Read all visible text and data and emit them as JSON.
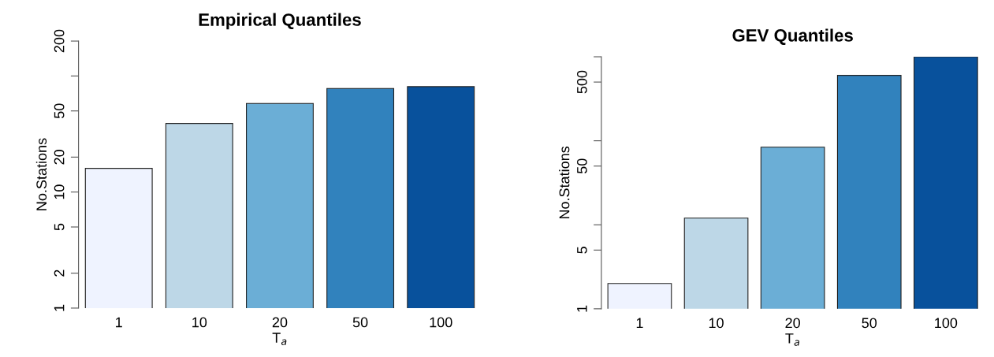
{
  "chart_data": [
    {
      "type": "bar",
      "title": "Empirical Quantiles",
      "xlabel": "T$_{a}$",
      "ylabel": "No.Stations",
      "categories": [
        "1",
        "10",
        "20",
        "50",
        "100"
      ],
      "values": [
        16,
        39,
        58,
        78,
        81
      ],
      "colors": [
        "#eff3ff",
        "#bdd7e7",
        "#6baed6",
        "#3182bd",
        "#08519c"
      ],
      "log": "y",
      "ylim": [
        1,
        200
      ],
      "yticks": [
        1,
        2,
        5,
        10,
        20,
        50,
        {
          "value": 100,
          "label": null
        },
        200
      ],
      "grid": false,
      "legend": false
    },
    {
      "type": "bar",
      "title": "GEV Quantiles",
      "xlabel": "T$_{a}$",
      "ylabel": "No.Stations",
      "categories": [
        "1",
        "10",
        "20",
        "50",
        "100"
      ],
      "values": [
        2,
        12,
        84,
        600,
        1000
      ],
      "colors": [
        "#eff3ff",
        "#bdd7e7",
        "#6baed6",
        "#3182bd",
        "#08519c"
      ],
      "log": "y",
      "ylim": [
        1,
        1000
      ],
      "yticks": [
        1,
        5,
        {
          "value": 10,
          "label": null
        },
        50,
        {
          "value": 100,
          "label": null
        },
        500,
        {
          "value": 1000,
          "label": null
        }
      ],
      "grid": false,
      "legend": false
    }
  ]
}
